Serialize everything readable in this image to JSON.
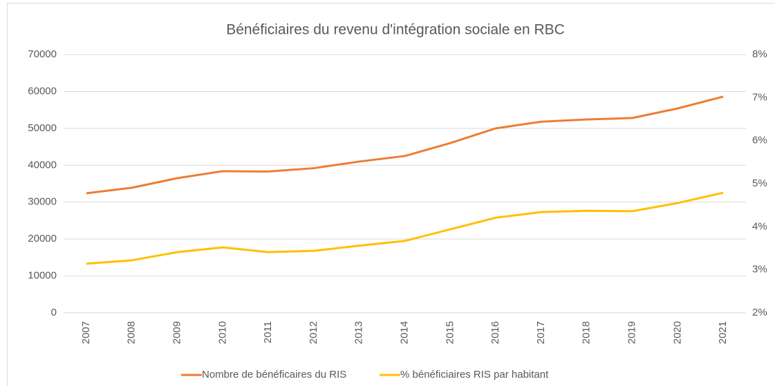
{
  "chart_data": {
    "type": "line",
    "title": "Bénéficiaires du revenu d'intégration sociale en RBC",
    "categories": [
      "2007",
      "2008",
      "2009",
      "2010",
      "2011",
      "2012",
      "2013",
      "2014",
      "2015",
      "2016",
      "2017",
      "2018",
      "2019",
      "2020",
      "2021"
    ],
    "series": [
      {
        "name": "Nombre de bénéficaires du RIS",
        "color": "#ed7d31",
        "values": [
          32400,
          33900,
          36500,
          38400,
          38300,
          39200,
          41000,
          42500,
          46000,
          50000,
          51800,
          52400,
          52800,
          55400,
          58600
        ]
      },
      {
        "name": "% bénéficiaires RIS par habitant",
        "color": "#ffc000",
        "axis": "y2",
        "values": [
          3.14,
          3.22,
          3.41,
          3.52,
          3.41,
          3.44,
          3.56,
          3.67,
          3.94,
          4.21,
          4.34,
          4.37,
          4.36,
          4.55,
          4.79
        ]
      }
    ],
    "ylim": [
      0,
      70000
    ],
    "yticks": [
      0,
      10000,
      20000,
      30000,
      40000,
      50000,
      60000,
      70000
    ],
    "y2lim": [
      2,
      8
    ],
    "y2ticks": [
      {
        "value": 2,
        "label": "2%"
      },
      {
        "value": 3,
        "label": "3%"
      },
      {
        "value": 4,
        "label": "4%"
      },
      {
        "value": 5,
        "label": "5%"
      },
      {
        "value": 6,
        "label": "6%"
      },
      {
        "value": 7,
        "label": "7%"
      },
      {
        "value": 8,
        "label": "8%"
      }
    ],
    "grid": true,
    "legend": "bottom"
  }
}
